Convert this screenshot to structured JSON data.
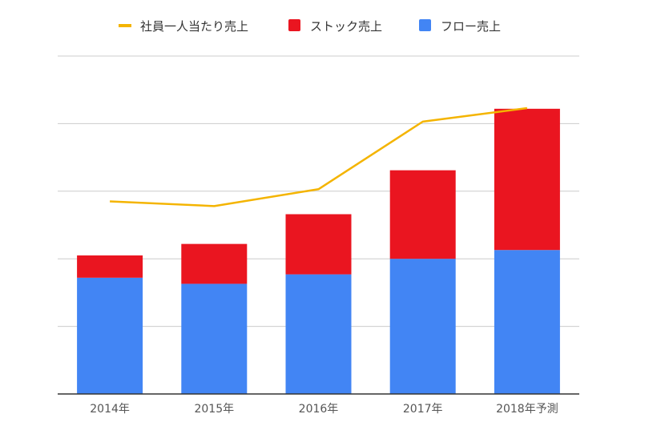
{
  "chart_data": {
    "type": "bar",
    "stacked": true,
    "categories": [
      "2014年",
      "2015年",
      "2016年",
      "2017年",
      "2018年予測"
    ],
    "series": [
      {
        "name": "フロー売上",
        "kind": "bar",
        "color": "#4285F4",
        "values": [
          1.72,
          1.63,
          1.77,
          2.0,
          2.13
        ]
      },
      {
        "name": "ストック売上",
        "kind": "bar",
        "color": "#EA1520",
        "values": [
          0.33,
          0.59,
          0.89,
          1.31,
          2.09
        ]
      },
      {
        "name": "社員一人当たり売上",
        "kind": "line",
        "color": "#F4B400",
        "values": [
          2.85,
          2.78,
          3.03,
          4.03,
          4.23
        ]
      }
    ],
    "ylim": [
      0,
      5
    ],
    "grid": true,
    "legend_position": "top",
    "legend_order": [
      "社員一人当たり売上",
      "ストック売上",
      "フロー売上"
    ]
  }
}
